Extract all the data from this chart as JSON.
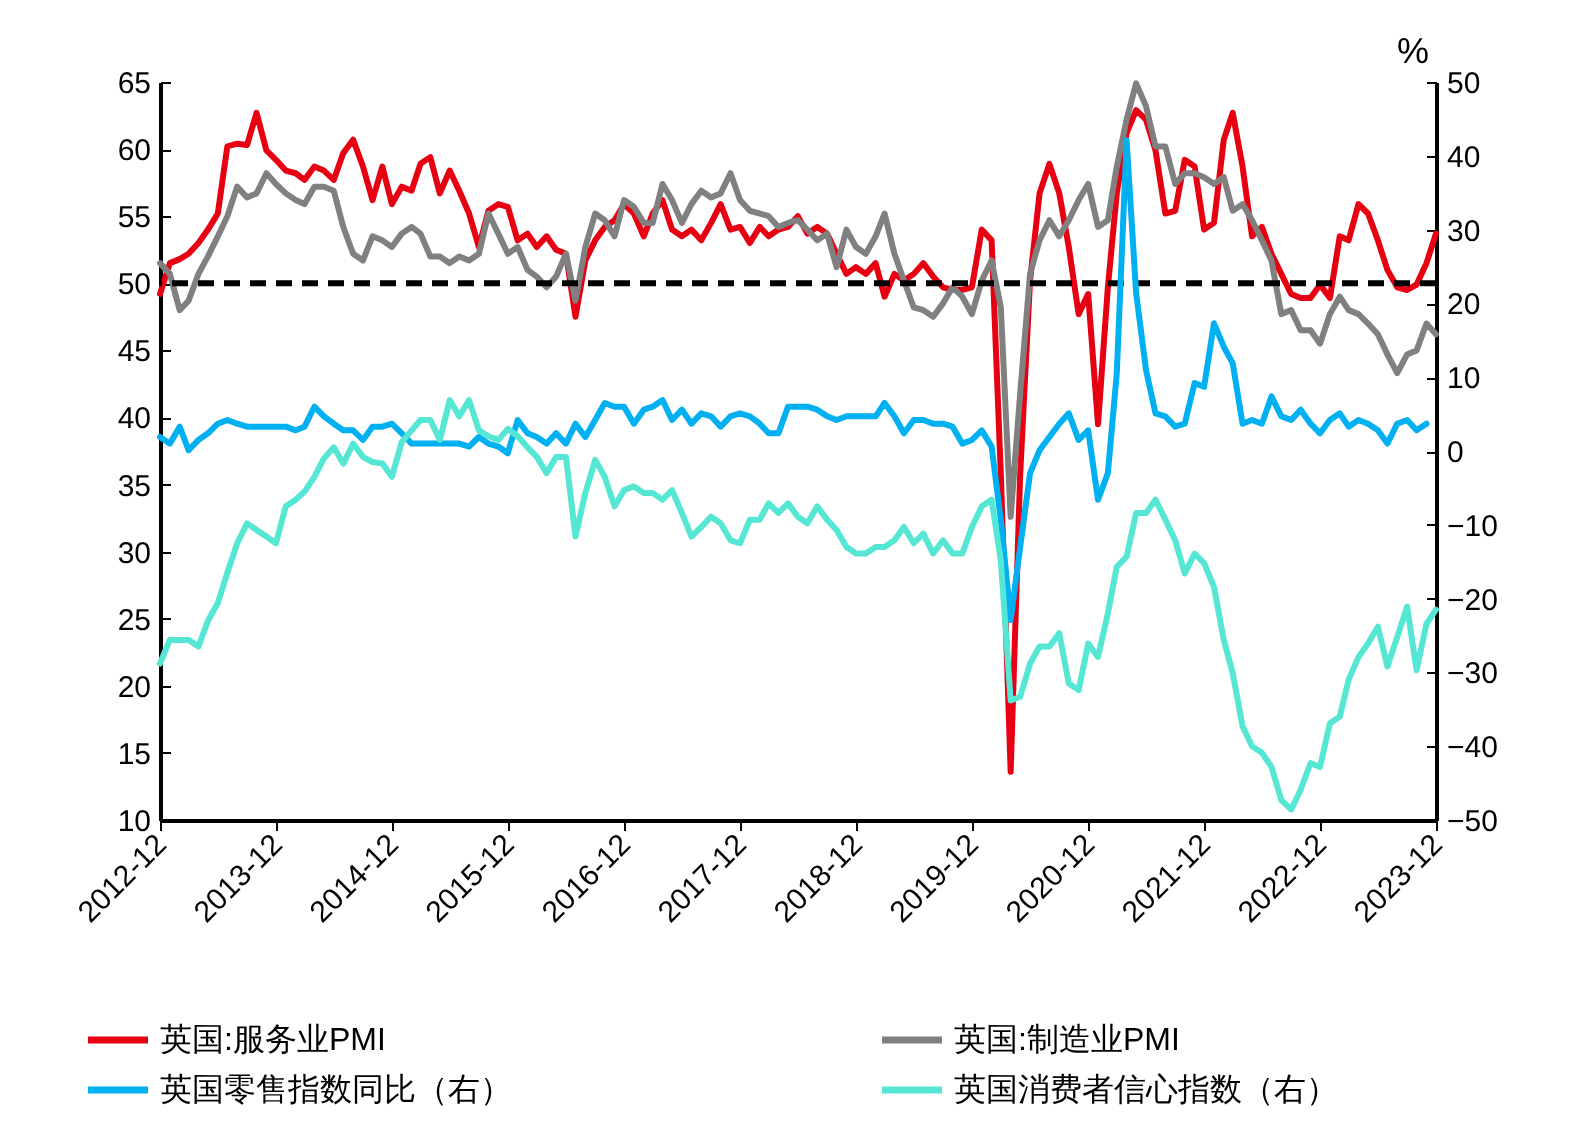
{
  "chart_data": {
    "type": "line",
    "x": [
      "2012-12",
      "2013-01",
      "2013-02",
      "2013-03",
      "2013-04",
      "2013-05",
      "2013-06",
      "2013-07",
      "2013-08",
      "2013-09",
      "2013-10",
      "2013-11",
      "2013-12",
      "2014-01",
      "2014-02",
      "2014-03",
      "2014-04",
      "2014-05",
      "2014-06",
      "2014-07",
      "2014-08",
      "2014-09",
      "2014-10",
      "2014-11",
      "2014-12",
      "2015-01",
      "2015-02",
      "2015-03",
      "2015-04",
      "2015-05",
      "2015-06",
      "2015-07",
      "2015-08",
      "2015-09",
      "2015-10",
      "2015-11",
      "2015-12",
      "2016-01",
      "2016-02",
      "2016-03",
      "2016-04",
      "2016-05",
      "2016-06",
      "2016-07",
      "2016-08",
      "2016-09",
      "2016-10",
      "2016-11",
      "2016-12",
      "2017-01",
      "2017-02",
      "2017-03",
      "2017-04",
      "2017-05",
      "2017-06",
      "2017-07",
      "2017-08",
      "2017-09",
      "2017-10",
      "2017-11",
      "2017-12",
      "2018-01",
      "2018-02",
      "2018-03",
      "2018-04",
      "2018-05",
      "2018-06",
      "2018-07",
      "2018-08",
      "2018-09",
      "2018-10",
      "2018-11",
      "2018-12",
      "2019-01",
      "2019-02",
      "2019-03",
      "2019-04",
      "2019-05",
      "2019-06",
      "2019-07",
      "2019-08",
      "2019-09",
      "2019-10",
      "2019-11",
      "2019-12",
      "2020-01",
      "2020-02",
      "2020-03",
      "2020-04",
      "2020-05",
      "2020-06",
      "2020-07",
      "2020-08",
      "2020-09",
      "2020-10",
      "2020-11",
      "2020-12",
      "2021-01",
      "2021-02",
      "2021-03",
      "2021-04",
      "2021-05",
      "2021-06",
      "2021-07",
      "2021-08",
      "2021-09",
      "2021-10",
      "2021-11",
      "2021-12",
      "2022-01",
      "2022-02",
      "2022-03",
      "2022-04",
      "2022-05",
      "2022-06",
      "2022-07",
      "2022-08",
      "2022-09",
      "2022-10",
      "2022-11",
      "2022-12",
      "2023-01",
      "2023-02",
      "2023-03",
      "2023-04",
      "2023-05",
      "2023-06",
      "2023-07",
      "2023-08",
      "2023-09",
      "2023-10",
      "2023-11",
      "2023-12"
    ],
    "series": [
      {
        "name": "英国:服务业PMI",
        "color": "#e60012",
        "values": [
          49.2,
          51.5,
          51.8,
          52.2,
          53,
          54,
          55.2,
          60.2,
          60.4,
          60.3,
          62.7,
          59.9,
          59.2,
          58.4,
          58.2,
          57.7,
          58.7,
          58.4,
          57.7,
          59.7,
          60.7,
          58.7,
          56.2,
          58.7,
          55.9,
          57.2,
          56.9,
          58.9,
          59.4,
          56.7,
          58.4,
          56.9,
          55.2,
          52.7,
          55.4,
          55.9,
          55.7,
          53.2,
          53.7,
          52.7,
          53.5,
          52.5,
          52.2,
          47.5,
          51.7,
          53.2,
          54.2,
          54.7,
          55.9,
          55.2,
          53.5,
          55.2,
          56.2,
          54,
          53.5,
          54,
          53.2,
          54.5,
          55.9,
          54,
          54.2,
          53,
          54.2,
          53.5,
          54,
          54.2,
          55,
          53.7,
          54.2,
          53.7,
          52.2,
          50.7,
          51.2,
          50.7,
          51.5,
          49,
          50.7,
          50.2,
          50.7,
          51.5,
          50.5,
          49.7,
          49.5,
          49.5,
          49.7,
          54,
          53.2,
          35.8,
          13.6,
          35.8,
          50.2,
          56.7,
          58.9,
          56.7,
          52.7,
          47.7,
          49.2,
          39.5,
          49.7,
          56.7,
          61.2,
          62.9,
          62.2,
          59.9,
          55.2,
          55.4,
          59.2,
          58.7,
          54,
          54.5,
          60.7,
          62.7,
          58.7,
          53.5,
          54.2,
          52.2,
          50.7,
          49.2,
          48.9,
          48.9,
          49.9,
          48.9,
          53.5,
          53.2,
          55.9,
          55.2,
          53.2,
          51,
          49.7,
          49.5,
          49.9,
          51.5,
          53.7
        ]
      },
      {
        "name": "英国:制造业PMI",
        "color": "#808080",
        "values": [
          51.5,
          50.7,
          48,
          48.7,
          50.7,
          52,
          53.5,
          55,
          57.2,
          56.4,
          56.7,
          58.2,
          57.4,
          56.7,
          56.2,
          55.9,
          57.2,
          57.2,
          56.9,
          54.2,
          52.2,
          51.7,
          53.5,
          53.2,
          52.7,
          53.7,
          54.2,
          53.7,
          52,
          52,
          51.5,
          52,
          51.7,
          52.2,
          55.2,
          53.7,
          52.2,
          52.7,
          51,
          50.5,
          49.7,
          50.5,
          52.2,
          48.7,
          52.7,
          55.2,
          54.7,
          53.5,
          56.2,
          55.7,
          54.5,
          54.5,
          57.4,
          56.2,
          54.5,
          55.9,
          56.9,
          56.4,
          56.7,
          58.2,
          56.2,
          55.4,
          55.2,
          55,
          54.2,
          54.5,
          54.7,
          54,
          53.2,
          53.7,
          51.2,
          54,
          52.7,
          52.2,
          53.5,
          55.2,
          52.2,
          50.2,
          48.2,
          48,
          47.5,
          48.5,
          49.7,
          49,
          47.7,
          50.2,
          51.7,
          48.2,
          32.6,
          41.8,
          50.7,
          53.2,
          54.7,
          53.5,
          54.7,
          56.2,
          57.4,
          54.2,
          54.7,
          58.7,
          62.2,
          64.9,
          63.2,
          60.2,
          60.2,
          57.4,
          58.2,
          58.2,
          57.9,
          57.4,
          57.9,
          55.4,
          55.9,
          54.7,
          53.2,
          51.7,
          47.7,
          48,
          46.5,
          46.5,
          45.5,
          47.7,
          49,
          48,
          47.7,
          47,
          46.2,
          44.7,
          43.3,
          44.7,
          45,
          47,
          46.2
        ]
      },
      {
        "name": "英国零售指数同比（右）",
        "color": "#00b0f0",
        "axis": "y2",
        "values": [
          1.9,
          1,
          3.3,
          0.1,
          1.5,
          2.4,
          3.7,
          4.2,
          3.7,
          3.3,
          3.3,
          3.3,
          3.3,
          3.3,
          2.8,
          3.3,
          6,
          4.7,
          3.7,
          2.8,
          2.8,
          1.5,
          3.3,
          3.3,
          3.7,
          2.4,
          1,
          1,
          1,
          1,
          1,
          1,
          0.6,
          1.9,
          1,
          0.6,
          -0.3,
          4.2,
          2.4,
          1.9,
          1,
          2.4,
          1,
          3.7,
          1.9,
          4.2,
          6.5,
          6,
          6,
          3.7,
          5.6,
          6,
          6.9,
          4.2,
          5.6,
          3.7,
          5.1,
          4.7,
          3.3,
          4.7,
          5.1,
          4.7,
          3.7,
          2.4,
          2.4,
          6,
          6,
          6,
          5.6,
          4.7,
          4.2,
          4.7,
          4.7,
          4.7,
          4.7,
          6.5,
          4.7,
          2.4,
          4.2,
          4.2,
          3.7,
          3.7,
          3.3,
          1,
          1.5,
          2.8,
          0.6,
          -9.3,
          -22.9,
          -13,
          -3,
          0.1,
          1.9,
          3.7,
          5.1,
          1.5,
          2.8,
          -6.6,
          -3,
          10.5,
          42.1,
          21.4,
          11,
          5.1,
          4.7,
          3.3,
          3.7,
          9.2,
          8.7,
          17.3,
          14.1,
          11.9,
          3.7,
          4.2,
          3.7,
          7.4,
          4.7,
          4.2,
          5.6,
          3.7,
          2.4,
          4.2,
          5.1,
          3.3,
          4.2,
          3.7,
          2.8,
          1,
          3.7,
          4.2,
          2.8,
          3.7,
          null
        ]
      },
      {
        "name": "英国消费者信心指数（右）",
        "color": "#55e6d4",
        "axis": "y2",
        "values": [
          -28.8,
          -25.6,
          -25.6,
          -25.6,
          -26.5,
          -23,
          -20.6,
          -16.5,
          -12.5,
          -9.8,
          -10.7,
          -11.6,
          -12.5,
          -7.5,
          -6.6,
          -5.5,
          -3.5,
          -1,
          0.5,
          -1.7,
          1,
          -0.8,
          -1.5,
          -1.7,
          -3.5,
          1.2,
          2.8,
          4.2,
          4.2,
          1.5,
          6.9,
          4.7,
          6.9,
          2.8,
          2,
          1.5,
          3,
          2,
          0.5,
          -0.8,
          -3,
          -0.8,
          -0.8,
          -11.6,
          -5.7,
          -1.2,
          -3.5,
          -7.5,
          -5.3,
          -4.8,
          -5.7,
          -5.7,
          -6.6,
          -5.3,
          -8.4,
          -11.6,
          -10.3,
          -8.9,
          -9.8,
          -12.1,
          -12.5,
          -9.3,
          -9.3,
          -7.1,
          -8.4,
          -7.1,
          -8.9,
          -9.8,
          -7.5,
          -9.3,
          -10.7,
          -13,
          -13.9,
          -13.9,
          -13,
          -13,
          -12.1,
          -10.3,
          -12.5,
          -11.2,
          -13.9,
          -12.1,
          -13.9,
          -13.9,
          -10.3,
          -7.5,
          -6.6,
          -14.8,
          -33.8,
          -33.3,
          -28.8,
          -26.5,
          -26.5,
          -24.7,
          -31.5,
          -32.4,
          -26.1,
          -27.9,
          -22,
          -15.7,
          -14.3,
          -8.4,
          -8.4,
          -6.6,
          -9.3,
          -12.1,
          -16.6,
          -13.9,
          -15.2,
          -18.4,
          -25.6,
          -30.1,
          -37.3,
          -40,
          -40.9,
          -42.8,
          -47.3,
          -48.6,
          -45.9,
          -42.3,
          -42.8,
          -36.9,
          -36,
          -31,
          -27.9,
          -26.1,
          -23.8,
          -29.2,
          -25.2,
          -21.1,
          -29.7,
          -23.4,
          -21.5
        ]
      }
    ],
    "xlim": [
      "2012-12",
      "2023-12"
    ],
    "xticks": [
      "2012-12",
      "2013-12",
      "2014-12",
      "2015-12",
      "2016-12",
      "2017-12",
      "2018-12",
      "2019-12",
      "2020-12",
      "2021-12",
      "2022-12",
      "2023-12"
    ],
    "ylim": [
      10,
      65
    ],
    "yticks": [
      10,
      15,
      20,
      25,
      30,
      35,
      40,
      45,
      50,
      55,
      60,
      65
    ],
    "y2lim": [
      -50,
      50
    ],
    "y2ticks": [
      -50,
      -40,
      -30,
      -20,
      -10,
      0,
      10,
      20,
      30,
      40,
      50
    ],
    "y2label": "%",
    "ref_lines": [
      {
        "axis": "y",
        "value": 50,
        "color": "#000000",
        "line_style": "dashed"
      }
    ],
    "legend": "bottom"
  }
}
